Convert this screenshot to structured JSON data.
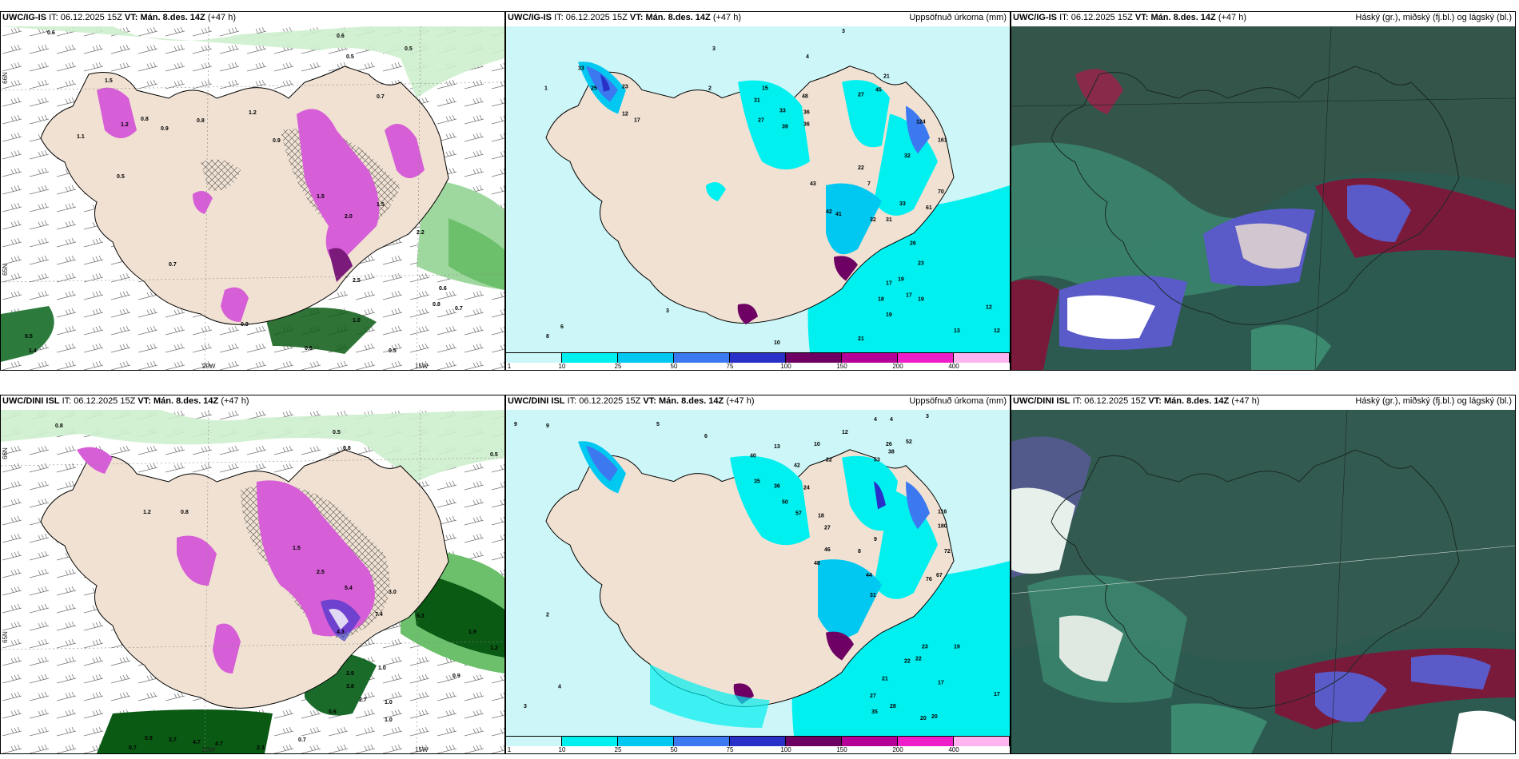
{
  "panels": [
    {
      "id": "top-left",
      "model": "UWC/IG-IS",
      "it_label": "IT:",
      "it_value": "06.12.2025 15Z",
      "vt_label": "VT:",
      "vt_value": "Mán. 8.des. 14Z",
      "lead": "(+47 h)",
      "right_title": "",
      "lon_labels": [
        "20W",
        "15W"
      ],
      "lat_labels": [
        "66N",
        "65N"
      ],
      "numbers": [
        "0.6",
        "0.6",
        "0.5",
        "0.7",
        "1.5",
        "1.2",
        "0.9",
        "1.2",
        "0.8",
        "0.8",
        "1.1",
        "0.5",
        "0.9",
        "1.5",
        "2.0",
        "1.5",
        "2.2",
        "2.5",
        "0.8",
        "0.6",
        "0.7",
        "1.0",
        "0.5",
        "0.6",
        "0.9",
        "0.5",
        "1.4",
        "0.7",
        "0.5"
      ]
    },
    {
      "id": "top-middle",
      "model": "UWC/IG-IS",
      "it_label": "IT:",
      "it_value": "06.12.2025 15Z",
      "vt_label": "VT:",
      "vt_value": "Mán. 8.des. 14Z",
      "lead": "(+47 h)",
      "right_title": "Uppsöfnuð úrkoma (mm)",
      "numbers": [
        "3",
        "4",
        "3",
        "33",
        "1",
        "25",
        "23",
        "12",
        "17",
        "2",
        "15",
        "31",
        "33",
        "36",
        "48",
        "36",
        "27",
        "39",
        "21",
        "27",
        "45",
        "124",
        "161",
        "32",
        "43",
        "22",
        "7",
        "42",
        "41",
        "32",
        "31",
        "33",
        "61",
        "70",
        "26",
        "23",
        "19",
        "17",
        "18",
        "17",
        "19",
        "19",
        "13",
        "12",
        "12",
        "21",
        "10",
        "6",
        "8",
        "3"
      ],
      "colorbar": [
        "1",
        "10",
        "25",
        "50",
        "75",
        "100",
        "150",
        "200",
        "400"
      ]
    },
    {
      "id": "top-right",
      "model": "UWC/IG-IS",
      "it_label": "IT:",
      "it_value": "06.12.2025 15Z",
      "vt_label": "VT:",
      "vt_value": "Mán. 8.des. 14Z",
      "lead": "(+47 h)",
      "right_title": "Háský (gr.), miðský (fj.bl.) og lágský (bl.)"
    },
    {
      "id": "bottom-left",
      "model": "UWC/DINI ISL",
      "it_label": "IT:",
      "it_value": "06.12.2025 15Z",
      "vt_label": "VT:",
      "vt_value": "Mán. 8.des. 14Z",
      "lead": "(+47 h)",
      "right_title": "",
      "lon_labels": [
        "20W",
        "15W"
      ],
      "lat_labels": [
        "66N",
        "65N"
      ],
      "numbers": [
        "0.8",
        "0.5",
        "0.8",
        "0.5",
        "1.2",
        "0.8",
        "1.5",
        "2.5",
        "3.0",
        "5.4",
        "5.3",
        "4.3",
        "7.4",
        "1.9",
        "1.2",
        "2.9",
        "3.8",
        "2.7",
        "1.0",
        "1.0",
        "0.6",
        "3.7",
        "4.7",
        "4.7",
        "0.9",
        "0.7",
        "0.7",
        "1.0",
        "0.9",
        "2.3"
      ]
    },
    {
      "id": "bottom-middle",
      "model": "UWC/DINI ISL",
      "it_label": "IT:",
      "it_value": "06.12.2025 15Z",
      "vt_label": "VT:",
      "vt_value": "Mán. 8.des. 14Z",
      "lead": "(+47 h)",
      "right_title": "Uppsöfnuð úrkoma (mm)",
      "numbers": [
        "9",
        "9",
        "5",
        "6",
        "4",
        "4",
        "3",
        "12",
        "38",
        "52",
        "26",
        "53",
        "10",
        "22",
        "13",
        "35",
        "36",
        "50",
        "57",
        "24",
        "40",
        "42",
        "46",
        "18",
        "27",
        "48",
        "8",
        "9",
        "44",
        "76",
        "67",
        "31",
        "23",
        "19",
        "22",
        "22",
        "21",
        "17",
        "17",
        "27",
        "28",
        "20",
        "20",
        "35",
        "116",
        "180",
        "72",
        "2",
        "3",
        "4"
      ],
      "colorbar": [
        "1",
        "10",
        "25",
        "50",
        "75",
        "100",
        "150",
        "200",
        "400"
      ]
    },
    {
      "id": "bottom-right",
      "model": "UWC/DINI ISL",
      "it_label": "IT:",
      "it_value": "06.12.2025 15Z",
      "vt_label": "VT:",
      "vt_value": "Mán. 8.des. 14Z",
      "lead": "(+47 h)",
      "right_title": "Háský (gr.), miðský (fj.bl.) og lágský (bl.)"
    }
  ],
  "colors": {
    "land": "#f0e1d2",
    "precip_1": "#ccf6f7",
    "precip_10": "#00f0f0",
    "precip_25": "#00c8f0",
    "precip_50": "#3c78f0",
    "precip_75": "#2830c8",
    "precip_100": "#6e0064",
    "precip_150": "#b40096",
    "precip_200": "#f01ec8",
    "precip_400": "#ffb4f0",
    "snow_light": "#cdeecd",
    "snow_mid": "#6cc06c",
    "snow_dark": "#0a5a14",
    "magenta": "#d65ed6",
    "cloud_high": "#2c5a50",
    "cloud_mid": "#5a5ac8",
    "cloud_low": "#7a1a3a"
  }
}
